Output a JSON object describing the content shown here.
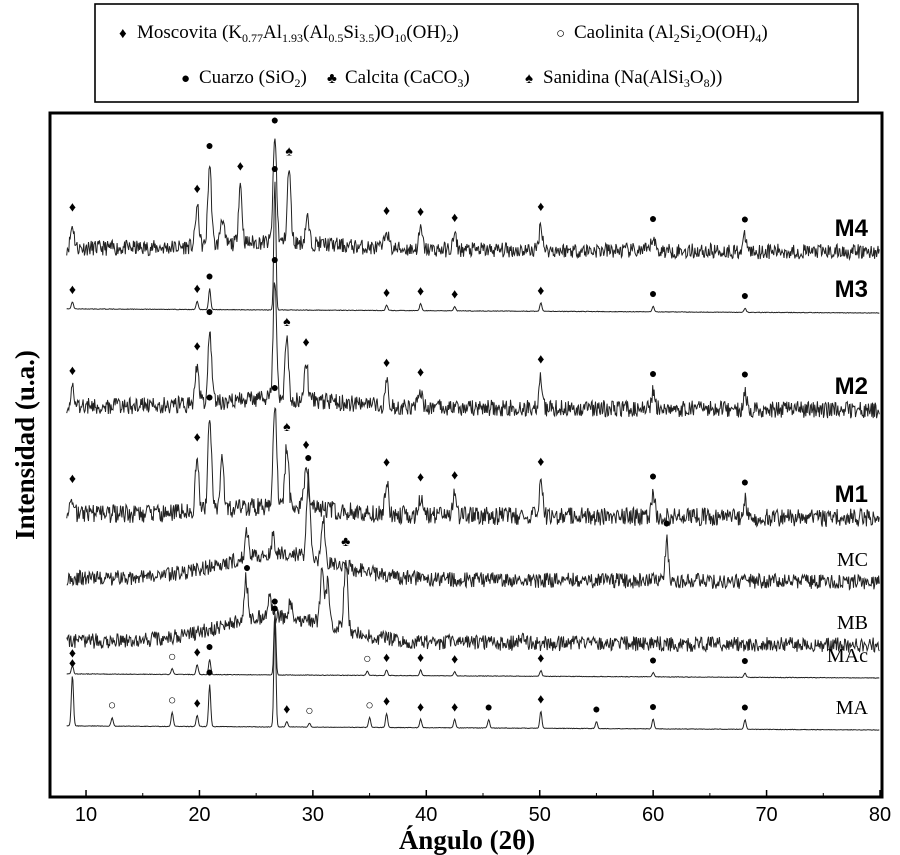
{
  "chart_data": {
    "type": "line",
    "xlabel": "Ángulo (2θ)",
    "ylabel": "Intensidad (u.a.)",
    "xlim": [
      7,
      80
    ],
    "x_ticks": [
      10,
      20,
      30,
      40,
      50,
      60,
      70,
      80
    ],
    "x_tick_labels": [
      "10",
      "20",
      "30",
      "40",
      "50",
      "60",
      "70",
      "80"
    ],
    "grid": false,
    "legend_position": "top",
    "legend": [
      {
        "symbol": "♦",
        "label": "Moscovita (K0.77Al1.93(Al0.5Si3.5)O10(OH)2)",
        "mineral": "Moscovita",
        "formula": [
          "(K",
          "0.77",
          "Al",
          "1.93",
          "(Al",
          "0.5",
          "Si",
          "3.5",
          ")O",
          "10",
          "(OH)",
          "2",
          ")"
        ]
      },
      {
        "symbol": "○",
        "label": "Caolinita (Al2Si2O(OH)4)",
        "mineral": "Caolinita",
        "formula": [
          "(Al",
          "2",
          "Si",
          "2",
          "O(OH)",
          "4",
          ")"
        ]
      },
      {
        "symbol": "●",
        "label": "Cuarzo (SiO2)",
        "mineral": "Cuarzo",
        "formula": [
          "(SiO",
          "2",
          ")"
        ]
      },
      {
        "symbol": "♣",
        "label": "Calcita (CaCO3)",
        "mineral": "Calcita",
        "formula": [
          "(CaCO",
          "3",
          ")"
        ]
      },
      {
        "symbol": "♠",
        "label": "Sanidina (Na(AlSi3O8))",
        "mineral": "Sanidina",
        "formula": [
          "(Na(AlSi",
          "3",
          "O",
          "8",
          "))"
        ]
      }
    ],
    "series": [
      {
        "name": "M4",
        "label_bold": true,
        "noise": 0.55,
        "baseline_hump": 0.25,
        "peaks": [
          [
            8.8,
            0.8
          ],
          [
            19.8,
            1.4
          ],
          [
            20.9,
            2.9
          ],
          [
            22.0,
            1.0
          ],
          [
            23.6,
            2.1
          ],
          [
            26.65,
            3.7
          ],
          [
            27.9,
            2.6
          ],
          [
            29.5,
            0.9
          ],
          [
            36.5,
            0.7
          ],
          [
            39.5,
            0.7
          ],
          [
            42.5,
            0.5
          ],
          [
            50.1,
            0.9
          ],
          [
            60.0,
            0.5
          ],
          [
            68.1,
            0.5
          ]
        ],
        "markers": [
          [
            8.8,
            "♦"
          ],
          [
            19.8,
            "♦"
          ],
          [
            20.9,
            "●"
          ],
          [
            23.6,
            "♦"
          ],
          [
            26.65,
            "●"
          ],
          [
            27.9,
            "♠"
          ],
          [
            36.5,
            "♦"
          ],
          [
            39.5,
            "♦"
          ],
          [
            42.5,
            "♦"
          ],
          [
            50.1,
            "♦"
          ],
          [
            60.0,
            "●"
          ],
          [
            68.1,
            "●"
          ]
        ]
      },
      {
        "name": "M3",
        "label_bold": true,
        "noise": 0.02,
        "baseline_hump": 0.0,
        "peaks": [
          [
            8.8,
            0.25
          ],
          [
            19.8,
            0.3
          ],
          [
            20.9,
            0.75
          ],
          [
            26.65,
            4.6
          ],
          [
            36.5,
            0.2
          ],
          [
            39.5,
            0.25
          ],
          [
            42.5,
            0.15
          ],
          [
            50.1,
            0.3
          ],
          [
            60.0,
            0.2
          ],
          [
            68.1,
            0.15
          ]
        ],
        "markers": [
          [
            8.8,
            "♦"
          ],
          [
            19.8,
            "♦"
          ],
          [
            20.9,
            "●"
          ],
          [
            26.65,
            "●"
          ],
          [
            36.5,
            "♦"
          ],
          [
            39.5,
            "♦"
          ],
          [
            42.5,
            "♦"
          ],
          [
            50.1,
            "♦"
          ],
          [
            60.0,
            "●"
          ],
          [
            68.1,
            "●"
          ]
        ]
      },
      {
        "name": "M2",
        "label_bold": true,
        "noise": 0.6,
        "baseline_hump": 0.3,
        "peaks": [
          [
            8.8,
            0.6
          ],
          [
            19.8,
            1.4
          ],
          [
            20.9,
            2.6
          ],
          [
            26.65,
            4.3
          ],
          [
            27.7,
            2.1
          ],
          [
            29.4,
            1.4
          ],
          [
            36.5,
            0.9
          ],
          [
            39.5,
            0.6
          ],
          [
            50.1,
            1.1
          ],
          [
            60.0,
            0.6
          ],
          [
            68.1,
            0.6
          ]
        ],
        "markers": [
          [
            8.8,
            "♦"
          ],
          [
            19.8,
            "♦"
          ],
          [
            20.9,
            "●"
          ],
          [
            26.65,
            "●"
          ],
          [
            27.7,
            "♠"
          ],
          [
            29.4,
            "♦"
          ],
          [
            36.5,
            "♦"
          ],
          [
            39.5,
            "♦"
          ],
          [
            50.1,
            "♦"
          ],
          [
            60.0,
            "●"
          ],
          [
            68.1,
            "●"
          ]
        ]
      },
      {
        "name": "M1",
        "label_bold": true,
        "noise": 0.65,
        "baseline_hump": 0.3,
        "peaks": [
          [
            8.8,
            0.6
          ],
          [
            19.8,
            2.0
          ],
          [
            20.9,
            3.4
          ],
          [
            22.0,
            1.7
          ],
          [
            26.65,
            3.6
          ],
          [
            27.7,
            2.2
          ],
          [
            29.4,
            1.6
          ],
          [
            36.5,
            1.2
          ],
          [
            39.5,
            0.7
          ],
          [
            42.5,
            0.8
          ],
          [
            50.1,
            1.3
          ],
          [
            60.0,
            0.8
          ],
          [
            68.1,
            0.6
          ]
        ],
        "markers": [
          [
            8.8,
            "♦"
          ],
          [
            19.8,
            "♦"
          ],
          [
            20.9,
            "●"
          ],
          [
            26.65,
            "●"
          ],
          [
            27.7,
            "♠"
          ],
          [
            29.4,
            "♦"
          ],
          [
            36.5,
            "♦"
          ],
          [
            39.5,
            "♦"
          ],
          [
            42.5,
            "♦"
          ],
          [
            50.1,
            "♦"
          ],
          [
            60.0,
            "●"
          ],
          [
            68.1,
            "●"
          ]
        ]
      },
      {
        "name": "MC",
        "label_bold": false,
        "noise": 0.55,
        "baseline_hump": 0.9,
        "peaks": [
          [
            24.2,
            0.9
          ],
          [
            26.5,
            0.6
          ],
          [
            29.6,
            2.9
          ],
          [
            30.9,
            1.6
          ],
          [
            61.2,
            1.4
          ]
        ],
        "markers": [
          [
            29.6,
            "●"
          ],
          [
            61.2,
            "●"
          ]
        ]
      },
      {
        "name": "MB",
        "label_bold": false,
        "noise": 0.55,
        "baseline_hump": 0.9,
        "peaks": [
          [
            24.1,
            1.5
          ],
          [
            26.2,
            0.8
          ],
          [
            28.0,
            0.6
          ],
          [
            30.8,
            1.8
          ],
          [
            31.3,
            1.5
          ],
          [
            32.9,
            2.5
          ],
          [
            48.5,
            0.3
          ]
        ],
        "markers": [
          [
            24.2,
            "●"
          ],
          [
            32.9,
            "♣"
          ]
        ]
      },
      {
        "name": "MAc",
        "label_bold": false,
        "noise": 0.02,
        "baseline_hump": 0.0,
        "peaks": [
          [
            8.8,
            0.3
          ],
          [
            17.6,
            0.2
          ],
          [
            19.8,
            0.35
          ],
          [
            20.9,
            0.55
          ],
          [
            26.65,
            2.2
          ],
          [
            34.8,
            0.15
          ],
          [
            36.5,
            0.2
          ],
          [
            39.5,
            0.2
          ],
          [
            42.5,
            0.15
          ],
          [
            50.1,
            0.2
          ],
          [
            60.0,
            0.15
          ],
          [
            68.1,
            0.15
          ]
        ],
        "markers": [
          [
            8.8,
            "♦"
          ],
          [
            17.6,
            "○"
          ],
          [
            19.8,
            "♦"
          ],
          [
            20.9,
            "●"
          ],
          [
            26.65,
            "●"
          ],
          [
            34.8,
            "○"
          ],
          [
            36.5,
            "♦"
          ],
          [
            39.5,
            "♦"
          ],
          [
            42.5,
            "♦"
          ],
          [
            50.1,
            "♦"
          ],
          [
            60.0,
            "●"
          ],
          [
            68.1,
            "●"
          ]
        ]
      },
      {
        "name": "MA",
        "label_bold": false,
        "noise": 0.02,
        "baseline_hump": 0.0,
        "peaks": [
          [
            8.8,
            1.8
          ],
          [
            12.3,
            0.3
          ],
          [
            17.6,
            0.5
          ],
          [
            19.8,
            0.4
          ],
          [
            20.9,
            1.5
          ],
          [
            26.65,
            3.8
          ],
          [
            27.7,
            0.2
          ],
          [
            29.7,
            0.15
          ],
          [
            35.0,
            0.35
          ],
          [
            36.5,
            0.5
          ],
          [
            39.5,
            0.3
          ],
          [
            42.5,
            0.3
          ],
          [
            45.5,
            0.3
          ],
          [
            50.1,
            0.6
          ],
          [
            55.0,
            0.25
          ],
          [
            60.0,
            0.35
          ],
          [
            68.1,
            0.35
          ]
        ],
        "markers": [
          [
            8.8,
            "♦"
          ],
          [
            12.3,
            "○"
          ],
          [
            17.6,
            "○"
          ],
          [
            19.8,
            "♦"
          ],
          [
            20.9,
            "●"
          ],
          [
            26.65,
            "●"
          ],
          [
            27.7,
            "♦"
          ],
          [
            29.7,
            "○"
          ],
          [
            35.0,
            "○"
          ],
          [
            36.5,
            "♦"
          ],
          [
            39.5,
            "♦"
          ],
          [
            42.5,
            "♦"
          ],
          [
            45.5,
            "●"
          ],
          [
            50.1,
            "♦"
          ],
          [
            55.0,
            "●"
          ],
          [
            60.0,
            "●"
          ],
          [
            68.1,
            "●"
          ]
        ]
      }
    ]
  }
}
